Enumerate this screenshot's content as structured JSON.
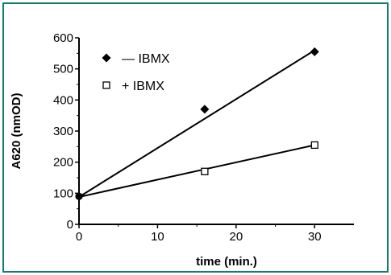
{
  "chart_data": {
    "type": "scatter",
    "xlabel": "time (min.)",
    "ylabel": "A620 (nmOD)",
    "xlim": [
      0,
      35
    ],
    "ylim": [
      0,
      600
    ],
    "xticks": [
      "0",
      "10",
      "20",
      "30"
    ],
    "yticks": [
      "0",
      "100",
      "200",
      "300",
      "400",
      "500",
      "600"
    ],
    "legend_position": "top-left",
    "grid": false,
    "series": [
      {
        "name": "— IBMX",
        "marker": "diamond-filled",
        "color": "#000000",
        "points": [
          [
            0,
            90
          ],
          [
            16,
            370
          ],
          [
            30,
            555
          ]
        ],
        "fit": [
          [
            0,
            88
          ],
          [
            30,
            560
          ]
        ]
      },
      {
        "name": "+ IBMX",
        "marker": "square-open",
        "color": "#000000",
        "points": [
          [
            0,
            90
          ],
          [
            16,
            170
          ],
          [
            30,
            255
          ]
        ],
        "fit": [
          [
            0,
            88
          ],
          [
            30,
            255
          ]
        ]
      }
    ]
  }
}
